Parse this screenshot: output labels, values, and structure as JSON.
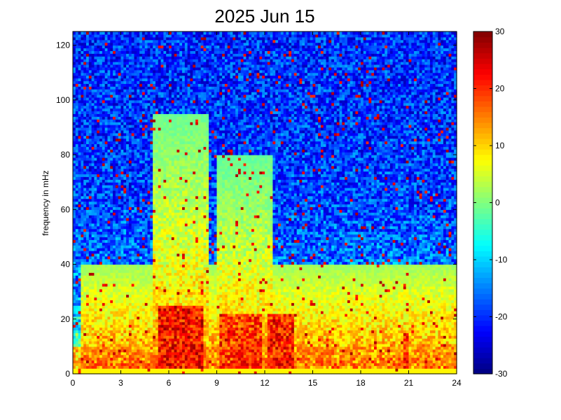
{
  "chart_data": {
    "type": "heatmap",
    "title": "2025 Jun 15",
    "xlabel": "",
    "ylabel": "frequency in mHz",
    "xlim": [
      0,
      24
    ],
    "ylim": [
      0,
      125
    ],
    "x_ticks": [
      0,
      3,
      6,
      9,
      12,
      15,
      18,
      21,
      24
    ],
    "x_tick_labels": [
      "0",
      "3",
      "6",
      "9",
      "12",
      "15",
      "18",
      "21",
      "24"
    ],
    "y_ticks": [
      0,
      20,
      40,
      60,
      80,
      100,
      120
    ],
    "y_tick_labels": [
      "0",
      "20",
      "40",
      "60",
      "80",
      "100",
      "120"
    ],
    "colorbar": {
      "range": [
        -30,
        30
      ],
      "ticks": [
        -30,
        -20,
        -10,
        0,
        10,
        20,
        30
      ],
      "tick_labels": [
        "-30",
        "-20",
        "-10",
        "0",
        "10",
        "20",
        "30"
      ],
      "colormap": "jet"
    },
    "grid": false,
    "resolution": {
      "time_bins": 144,
      "freq_bins": 125
    },
    "description_of_values": "Spectrogram power (colorbar units) over 24 h time axis and 0-125 mHz frequency axis",
    "features": {
      "background_level": -20,
      "high_power_bursts": [
        {
          "t_start": 5.4,
          "t_end": 8.2,
          "f_max": 25,
          "level": 25
        },
        {
          "t_start": 9.2,
          "t_end": 11.8,
          "f_max": 22,
          "level": 22
        },
        {
          "t_start": 12.2,
          "t_end": 13.8,
          "f_max": 22,
          "level": 24
        },
        {
          "t_start": 20.7,
          "t_end": 21.0,
          "f_max": 15,
          "level": 22
        }
      ],
      "elevated_regions": [
        {
          "t_start": 5.0,
          "t_end": 8.5,
          "f_max": 95,
          "level": -5
        },
        {
          "t_start": 9.0,
          "t_end": 12.5,
          "f_max": 80,
          "level": -6
        },
        {
          "t_start": 0.5,
          "t_end": 24.0,
          "f_max": 40,
          "level": 0
        }
      ],
      "low_frequency_band": {
        "f_max": 10,
        "level": 12
      }
    }
  }
}
